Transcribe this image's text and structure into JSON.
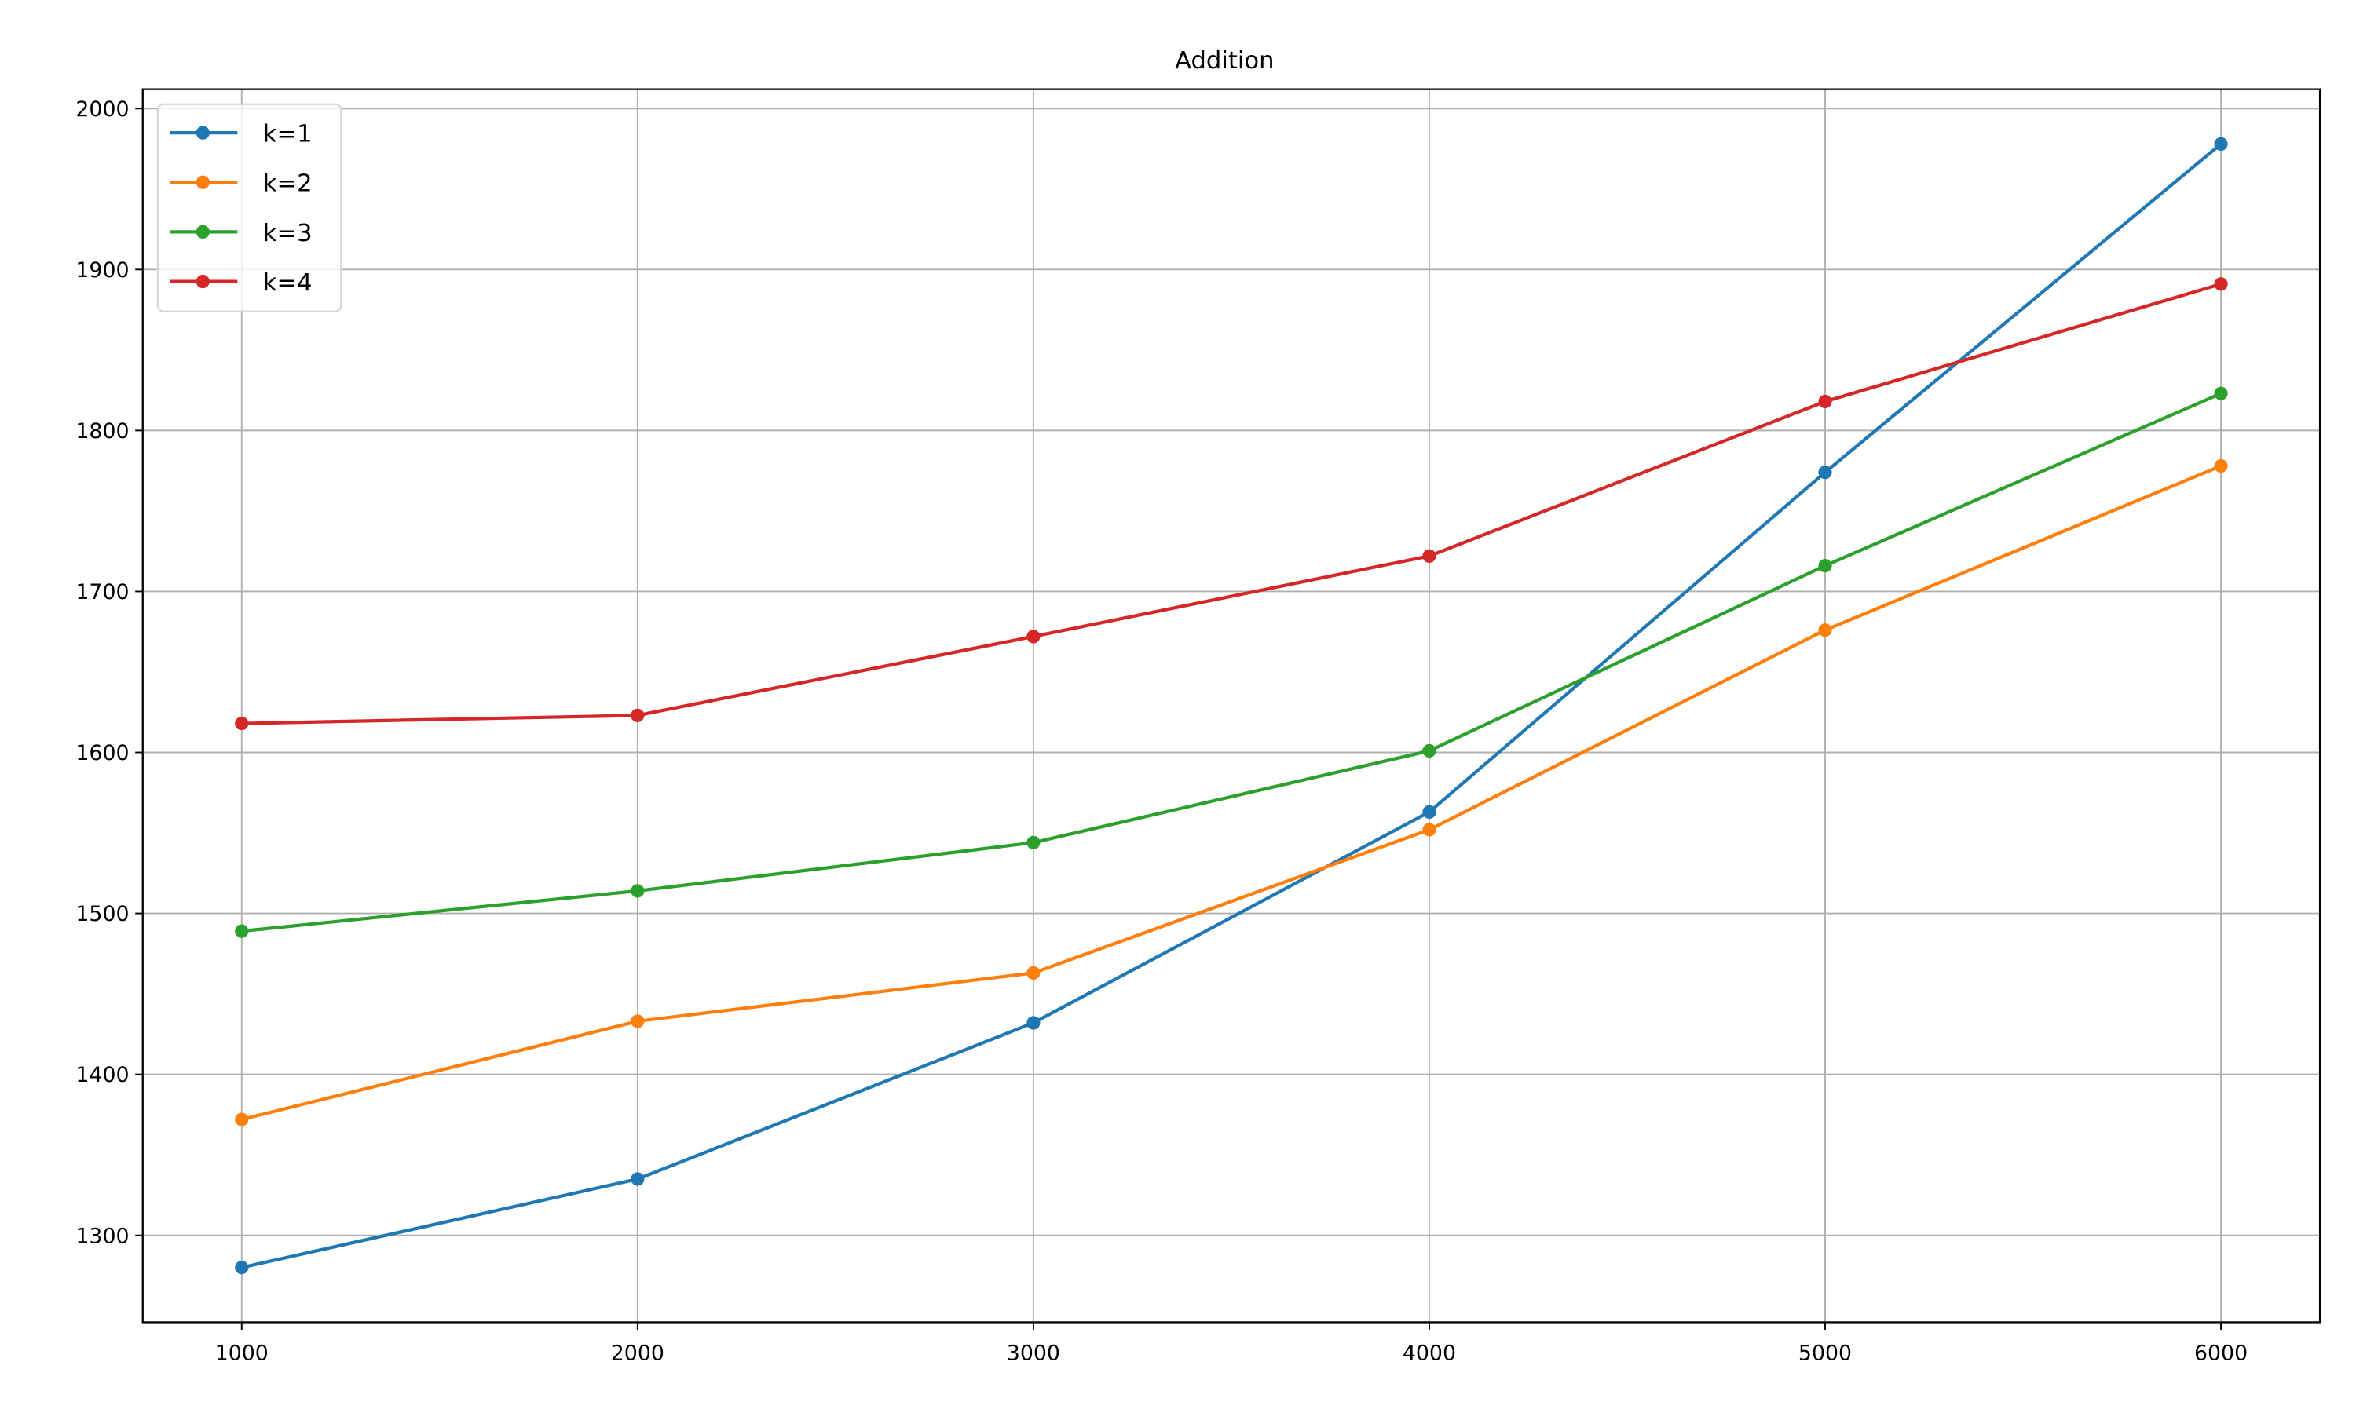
{
  "chart_data": {
    "type": "line",
    "title": "Addition",
    "xlabel": "",
    "ylabel": "",
    "x": [
      1000,
      2000,
      3000,
      4000,
      5000,
      6000
    ],
    "xlim": [
      750,
      6250
    ],
    "ylim": [
      1246,
      2012
    ],
    "xticks": [
      "1000",
      "2000",
      "3000",
      "4000",
      "5000",
      "6000"
    ],
    "yticks": [
      "1300",
      "1400",
      "1500",
      "1600",
      "1700",
      "1800",
      "1900",
      "2000"
    ],
    "grid": true,
    "legend_position": "top-left",
    "series": [
      {
        "name": "k=1",
        "color": "#1f77b4",
        "values": [
          1280,
          1335,
          1432,
          1563,
          1774,
          1978
        ]
      },
      {
        "name": "k=2",
        "color": "#ff7f0e",
        "values": [
          1372,
          1433,
          1463,
          1552,
          1676,
          1778
        ]
      },
      {
        "name": "k=3",
        "color": "#2ca02c",
        "values": [
          1489,
          1514,
          1544,
          1601,
          1716,
          1823
        ]
      },
      {
        "name": "k=4",
        "color": "#d62728",
        "values": [
          1618,
          1623,
          1672,
          1722,
          1818,
          1891
        ]
      }
    ]
  }
}
